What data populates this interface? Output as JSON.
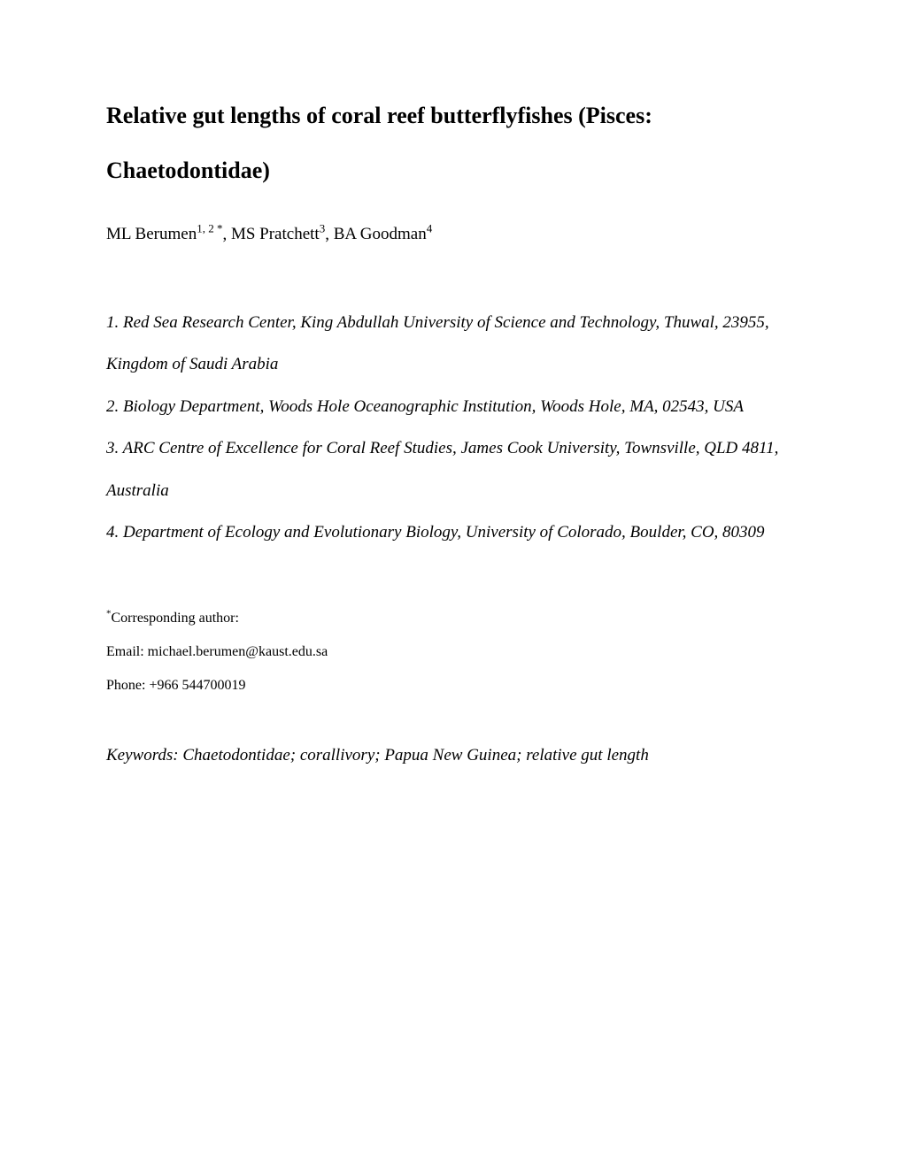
{
  "title": "Relative gut lengths of coral reef butterflyfishes (Pisces: Chaetodontidae)",
  "authors": {
    "list": [
      {
        "name": "ML Berumen",
        "sup": "1, 2 *"
      },
      {
        "name": "MS Pratchett",
        "sup": "3"
      },
      {
        "name": "BA Goodman",
        "sup": "4"
      }
    ]
  },
  "affiliations": [
    "1. Red Sea Research Center, King Abdullah University of Science and Technology, Thuwal, 23955, Kingdom of Saudi Arabia",
    "2. Biology Department, Woods Hole Oceanographic Institution, Woods Hole, MA, 02543, USA",
    "3. ARC Centre of Excellence for Coral Reef Studies, James Cook University, Townsville, QLD 4811, Australia",
    "4. Department of Ecology and Evolutionary Biology, University of Colorado, Boulder, CO, 80309"
  ],
  "corresponding": {
    "label": "Corresponding author:",
    "email_label": "Email: ",
    "email": "michael.berumen@kaust.edu.sa",
    "phone_label": "Phone: ",
    "phone": "+966 544700019"
  },
  "keywords": "Keywords: Chaetodontidae; corallivory; Papua New Guinea; relative gut length"
}
